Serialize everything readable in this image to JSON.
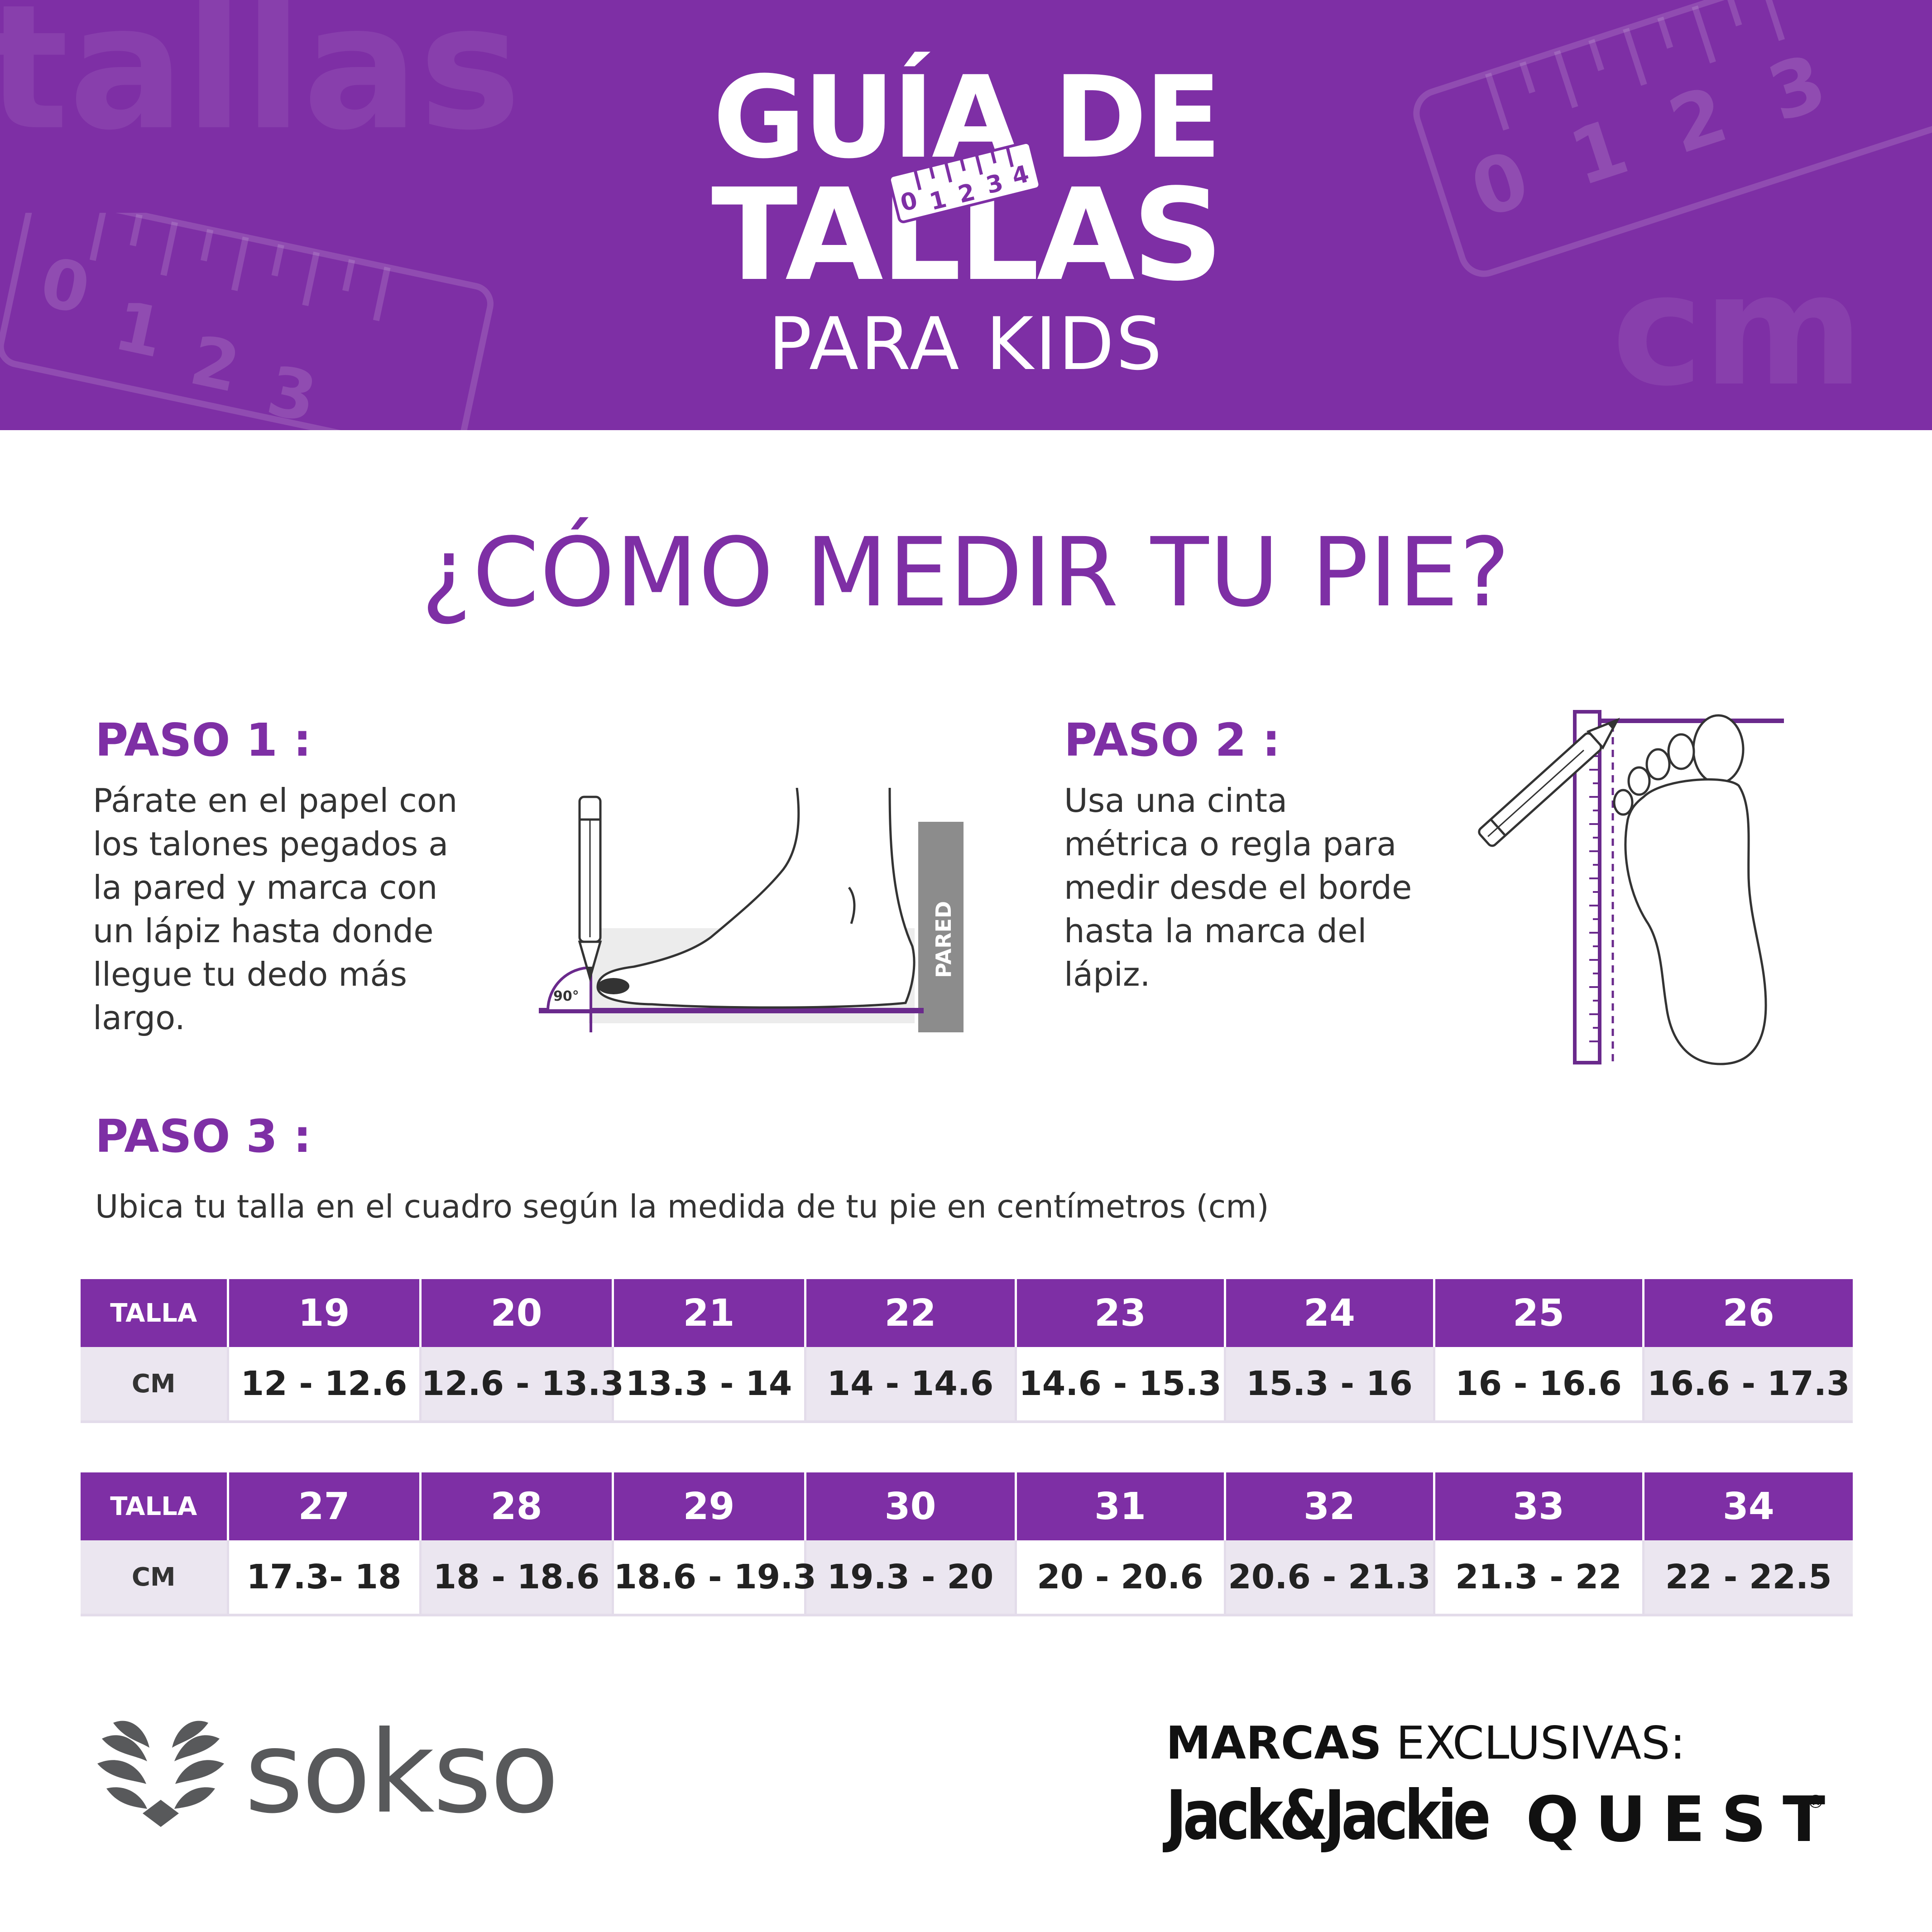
{
  "header": {
    "title_line1": "GUÍA DE",
    "title_line2": "TALLAS",
    "title_line3": "PARA KIDS",
    "background_word": "tallas",
    "background_unit": "cm",
    "ruler_digits": [
      "0",
      "1",
      "2",
      "3",
      "4"
    ],
    "color": "#7e2fa5"
  },
  "main_heading": "¿CÓMO MEDIR TU PIE?",
  "steps": [
    {
      "title": "PASO 1 :",
      "text": "Párate en el papel con\nlos talones pegados a\nla pared y marca con\nun lápiz hasta donde\nllegue tu dedo más\nlargo.",
      "illustration": {
        "wall_label": "PARED",
        "angle_label": "90°",
        "icons": [
          "pencil-icon",
          "foot-side-icon",
          "wall-icon"
        ]
      }
    },
    {
      "title": "PASO 2 :",
      "text": "Usa una cinta\nmétrica o regla para\nmedir desde el borde\nhasta la marca del\nlápiz.",
      "illustration": {
        "icons": [
          "pencil-icon",
          "ruler-icon",
          "foot-sole-icon"
        ]
      }
    },
    {
      "title": "PASO 3 :",
      "text": "Ubica tu talla en el cuadro según la medida de tu pie en centímetros (cm)"
    }
  ],
  "size_tables": [
    {
      "size_label": "TALLA",
      "cm_label": "CM",
      "sizes": [
        "19",
        "20",
        "21",
        "22",
        "23",
        "24",
        "25",
        "26"
      ],
      "cm": [
        "12 - 12.6",
        "12.6 - 13.3",
        "13.3 - 14",
        "14 - 14.6",
        "14.6 - 15.3",
        "15.3 - 16",
        "16 - 16.6",
        "16.6 - 17.3"
      ]
    },
    {
      "size_label": "TALLA",
      "cm_label": "CM",
      "sizes": [
        "27",
        "28",
        "29",
        "30",
        "31",
        "32",
        "33",
        "34"
      ],
      "cm": [
        "17.3- 18",
        "18 - 18.6",
        "18.6 - 19.3",
        "19.3 - 20",
        "20 - 20.6",
        "20.6 - 21.3",
        "21.3 - 22",
        "22 - 22.5"
      ]
    }
  ],
  "footer": {
    "brand": "sokso",
    "marcas_bold": "MARCAS",
    "marcas_rest": " EXCLUSIVAS:",
    "exclusive_brands": [
      "Jack&Jackie",
      "QUEST"
    ],
    "registered_mark": "®"
  }
}
